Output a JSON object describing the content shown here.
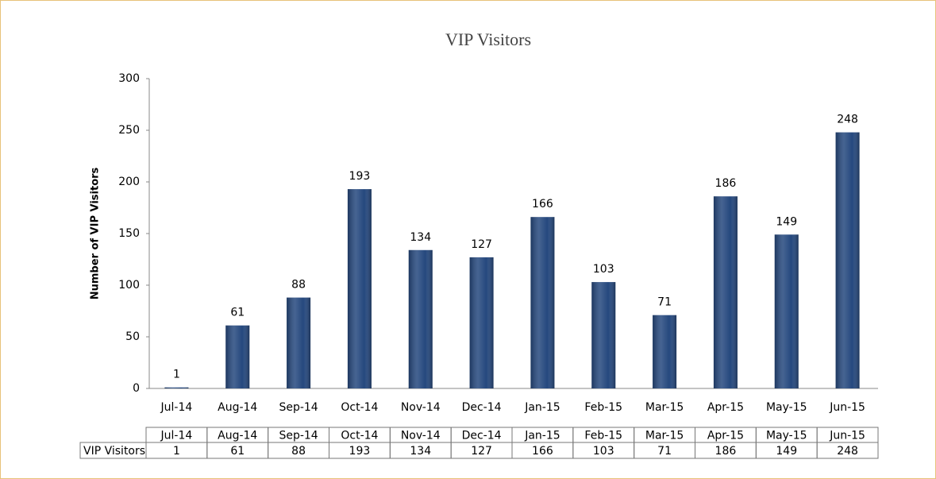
{
  "chart_data": {
    "type": "bar",
    "title": "VIP Visitors",
    "ylabel": "Number of VIP Visitors",
    "categories": [
      "Jul-14",
      "Aug-14",
      "Sep-14",
      "Oct-14",
      "Nov-14",
      "Dec-14",
      "Jan-15",
      "Feb-15",
      "Mar-15",
      "Apr-15",
      "May-15",
      "Jun-15"
    ],
    "series": [
      {
        "name": "VIP Visitors",
        "color": "#25487e",
        "values": [
          1,
          61,
          88,
          193,
          134,
          127,
          166,
          103,
          71,
          186,
          149,
          248
        ]
      }
    ],
    "ylim": [
      0,
      300
    ],
    "yticks": [
      0,
      50,
      100,
      150,
      200,
      250,
      300
    ],
    "grid": false,
    "data_table": true
  }
}
